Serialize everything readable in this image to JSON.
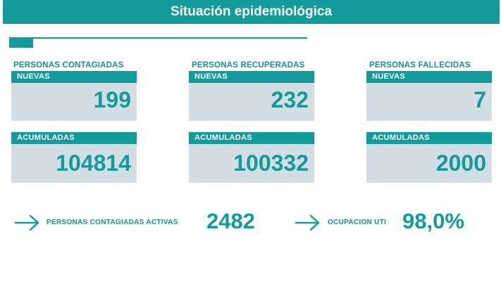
{
  "header": {
    "title": "Situación epidemiológica"
  },
  "colors": {
    "teal": "#139a9b",
    "card_bg": "#d3dde4",
    "label_text": "#1a8f90"
  },
  "groups": [
    {
      "title": "PERSONAS CONTAGIADAS",
      "new_label": "NUEVAS",
      "new_value": "199",
      "acc_label": "ACUMULADAS",
      "acc_value": "104814"
    },
    {
      "title": "PERSONAS RECUPERADAS",
      "new_label": "NUEVAS",
      "new_value": "232",
      "acc_label": "ACUMULADAS",
      "acc_value": "100332"
    },
    {
      "title": "PERSONAS FALLECIDAS",
      "new_label": "NUEVAS",
      "new_value": "7",
      "acc_label": "ACUMULADAS",
      "acc_value": "2000"
    }
  ],
  "summary": {
    "active_label": "PERSONAS CONTAGIADAS ACTIVAS",
    "active_value": "2482",
    "uti_label": "OCUPACION UTI",
    "uti_value": "98,0%",
    "arrow_icon": "arrow-right-icon"
  }
}
